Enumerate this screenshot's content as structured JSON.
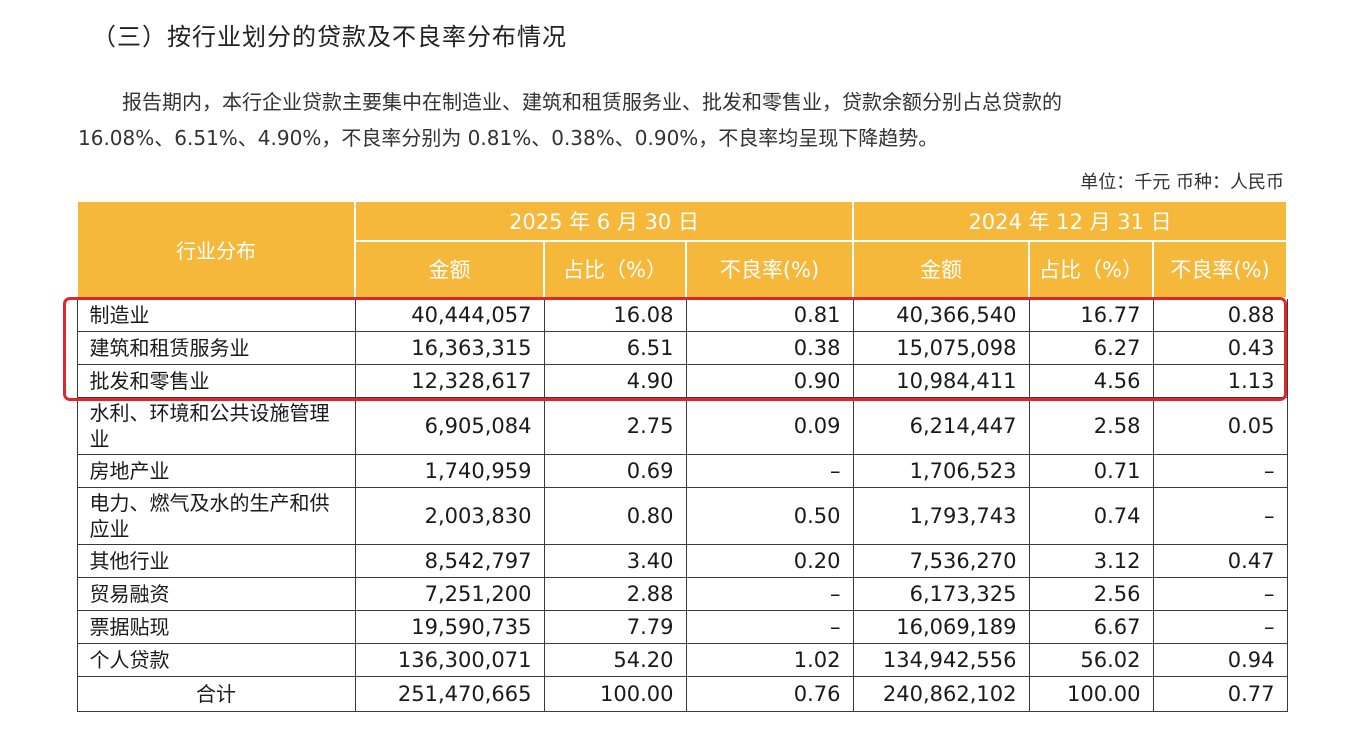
{
  "section_title": "（三）按行业划分的贷款及不良率分布情况",
  "paragraph": {
    "line1": "报告期内，本行企业贷款主要集中在制造业、建筑和租赁服务业、批发和零售业，贷款余额分别占总贷款的",
    "line2": "16.08%、6.51%、4.90%，不良率分别为 0.81%、0.38%、0.90%，不良率均呈现下降趋势。"
  },
  "unit_text": "单位：千元  币种：人民币",
  "table": {
    "industry_header": "行业分布",
    "period1": "2025 年 6 月 30 日",
    "period2": "2024 年 12 月 31 日",
    "p1_cols": [
      "金额",
      "占比（%）",
      "不良率(%)"
    ],
    "p2_cols": [
      "金额",
      "占比（%）",
      "不良率(%)"
    ],
    "rows": [
      {
        "name": "制造业",
        "a1": "40,444,057",
        "s1": "16.08",
        "n1": "0.81",
        "a2": "40,366,540",
        "s2": "16.77",
        "n2": "0.88"
      },
      {
        "name": "建筑和租赁服务业",
        "a1": "16,363,315",
        "s1": "6.51",
        "n1": "0.38",
        "a2": "15,075,098",
        "s2": "6.27",
        "n2": "0.43"
      },
      {
        "name": "批发和零售业",
        "a1": "12,328,617",
        "s1": "4.90",
        "n1": "0.90",
        "a2": "10,984,411",
        "s2": "4.56",
        "n2": "1.13"
      },
      {
        "name": "水利、环境和公共设施管理业",
        "a1": "6,905,084",
        "s1": "2.75",
        "n1": "0.09",
        "a2": "6,214,447",
        "s2": "2.58",
        "n2": "0.05"
      },
      {
        "name": "房地产业",
        "a1": "1,740,959",
        "s1": "0.69",
        "n1": "–",
        "a2": "1,706,523",
        "s2": "0.71",
        "n2": "–"
      },
      {
        "name": "电力、燃气及水的生产和供应业",
        "a1": "2,003,830",
        "s1": "0.80",
        "n1": "0.50",
        "a2": "1,793,743",
        "s2": "0.74",
        "n2": "–"
      },
      {
        "name": "其他行业",
        "a1": "8,542,797",
        "s1": "3.40",
        "n1": "0.20",
        "a2": "7,536,270",
        "s2": "3.12",
        "n2": "0.47"
      },
      {
        "name": "贸易融资",
        "a1": "7,251,200",
        "s1": "2.88",
        "n1": "–",
        "a2": "6,173,325",
        "s2": "2.56",
        "n2": "–"
      },
      {
        "name": "票据贴现",
        "a1": "19,590,735",
        "s1": "7.79",
        "n1": "–",
        "a2": "16,069,189",
        "s2": "6.67",
        "n2": "–"
      },
      {
        "name": "个人贷款",
        "a1": "136,300,071",
        "s1": "54.20",
        "n1": "1.02",
        "a2": "134,942,556",
        "s2": "56.02",
        "n2": "0.94"
      },
      {
        "name": "合计",
        "a1": "251,470,665",
        "s1": "100.00",
        "n1": "0.76",
        "a2": "240,862,102",
        "s2": "100.00",
        "n2": "0.77"
      }
    ]
  },
  "colors": {
    "header_bg": "#f5b83b",
    "highlight_border": "#e0262d"
  }
}
